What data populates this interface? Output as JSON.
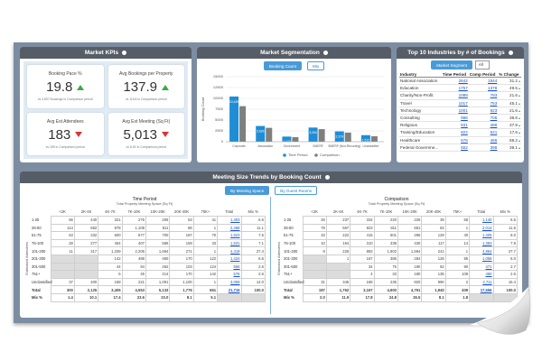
{
  "kpi_panel": {
    "title": "Market KPIs",
    "cards": [
      {
        "label": "Booking Pace %",
        "value": "19.8",
        "note": "vs 3,897 Bookings in Comparison period",
        "trend": "up"
      },
      {
        "label": "Avg Bookings per Property",
        "value": "137.9",
        "note": "vs 115.8 in Comparison period",
        "trend": "up"
      },
      {
        "label": "Avg Est Attendees",
        "value": "183",
        "note": "vs 189 in Comparison period",
        "trend": "down"
      },
      {
        "label": "Avg Est Meeting (Sq Ft)",
        "value": "5,013",
        "note": "vs 6.2K in Comparison period",
        "trend": "down"
      }
    ]
  },
  "segmentation_controls": [
    "Booking Count",
    "Mix"
  ],
  "chart_data": {
    "type": "bar",
    "title": "Market Segmentation",
    "y_label": "Booking Count",
    "categories": [
      "Corporate",
      "Association",
      "Government",
      "SMERF",
      "SMERF (Non-Recurring)",
      "Unclassified"
    ],
    "series": [
      {
        "name": "Time Period",
        "color": "#1f8dd6",
        "values": [
          10425,
          3626,
          1177,
          3264,
          2379,
          1512
        ],
        "value_labels": [
          "10,425",
          "3,626",
          "1,177",
          "3,264",
          "2,379",
          "1,512"
        ]
      },
      {
        "name": "Comparison",
        "color": "#7f7f7f",
        "values": [
          8200,
          3200,
          1050,
          2900,
          2100,
          1250
        ]
      }
    ],
    "ylim": [
      0,
      15000
    ],
    "yticks": [
      0,
      2500,
      5000,
      7500,
      10000,
      12500,
      15000
    ],
    "grid": true
  },
  "industries": {
    "title": "Top 10 Industries by # of Bookings",
    "filter_label": "Market Segment",
    "filter_value": "All",
    "columns": [
      "Industry",
      "Time Period",
      "Comp Period",
      "% Change"
    ],
    "rows": [
      [
        "National Association",
        "2642",
        "1844",
        "31.2"
      ],
      [
        "Education",
        "1757",
        "1378",
        "49.5"
      ],
      [
        "Charity/Non-Profit",
        "1088",
        "783",
        "21.6"
      ],
      [
        "Travel",
        "1017",
        "753",
        "45.1"
      ],
      [
        "Technology",
        "1001",
        "823",
        "21.6"
      ],
      [
        "Consulting",
        "996",
        "705",
        "36.6"
      ],
      [
        "Religious",
        "831",
        "488",
        "37.8"
      ],
      [
        "Training/Education",
        "822",
        "521",
        "17.6"
      ],
      [
        "Healthcare",
        "678",
        "466",
        "58.2"
      ],
      [
        "Federal Governme...",
        "552",
        "398",
        "39.1"
      ]
    ]
  },
  "meeting_size": {
    "title": "Meeting Size Trends by Booking Count",
    "tabs": [
      "By Meeting Space",
      "By Guest Rooms"
    ],
    "axis_label": "Estimated Attendees",
    "tables": [
      {
        "title": "Time Period",
        "subtitle": "Total Property Meeting Space (Sq Ft)",
        "columns": [
          "<2K",
          "2K-4K",
          "4K-7K",
          "7K-10K",
          "10K-20K",
          "20K-40K",
          "75K+",
          "Total",
          "Mix %"
        ],
        "rows": [
          {
            "label": "1-25",
            "cells": [
              "66",
              "440",
              "321",
              "276",
              "206",
              "53",
              "41",
              "1,403",
              "6.6"
            ]
          },
          {
            "label": "26-50",
            "cells": [
              "114",
              "682",
              "878",
              "1,108",
              "811",
              "86",
              "1",
              "2,468",
              "11.1"
            ]
          },
          {
            "label": "51-75",
            "cells": [
              "63",
              "332",
              "600",
              "677",
              "700",
              "187",
              "70",
              "1,623",
              "7.5"
            ]
          },
          {
            "label": "76-100",
            "cells": [
              "28",
              "277",
              "454",
              "407",
              "566",
              "159",
              "33",
              "1,531",
              "7.1"
            ]
          },
          {
            "label": "101-200",
            "cells": [
              "11",
              "317",
              "1,339",
              "2,206",
              "1,694",
              "271",
              "1",
              "4,419",
              "27.4"
            ]
          },
          {
            "label": "201-300",
            "cells": [
              null,
              null,
              "142",
              "488",
              "460",
              "170",
              "122",
              "1,424",
              "6.6"
            ]
          },
          {
            "label": "301-500",
            "cells": [
              null,
              null,
              "44",
              "94",
              "262",
              "103",
              "124",
              "556",
              "2.6"
            ]
          },
          {
            "label": "751+",
            "cells": [
              null,
              null,
              "5",
              "45",
              "214",
              "170",
              "142",
              "576",
              "2.6"
            ]
          },
          {
            "label": "Unclassified",
            "cells": [
              "37",
              "400",
              "168",
              "221",
              "1,091",
              "1,100",
              "1",
              "3,059",
              "14.0"
            ]
          },
          {
            "label": "Total",
            "cells": [
              "300",
              "2,125",
              "3,405",
              "4,553",
              "5,133",
              "1,776",
              "651",
              "21,716",
              "100.0"
            ]
          },
          {
            "label": "Mix %",
            "cells": [
              "1.4",
              "10.1",
              "17.4",
              "23.6",
              "23.0",
              "8.1",
              "5.1",
              null,
              null
            ]
          }
        ]
      },
      {
        "title": "Comparison",
        "subtitle": "Total Property Meeting Space (Sq Ft)",
        "columns": [
          "<2K",
          "2K-4K",
          "4K-7K",
          "7K-10K",
          "10K-20K",
          "20K-40K",
          "75K+",
          "Total",
          "Mix %"
        ],
        "rows": [
          {
            "label": "1-25",
            "cells": [
              "26",
              "237",
              "334",
              "220",
              "226",
              "39",
              "58",
              "1,140",
              "6.5"
            ]
          },
          {
            "label": "26-50",
            "cells": [
              "79",
              "567",
              "823",
              "811",
              "651",
              "82",
              "1",
              "2,014",
              "11.5"
            ]
          },
          {
            "label": "51-75",
            "cells": [
              "33",
              "222",
              "415",
              "601",
              "286",
              "128",
              "40",
              "1,405",
              "8.0"
            ]
          },
          {
            "label": "76-100",
            "cells": [
              "10",
              "164",
              "310",
              "338",
              "430",
              "117",
              "14",
              "1,383",
              "7.9"
            ]
          },
          {
            "label": "101-200",
            "cells": [
              "8",
              "226",
              "892",
              "1,902",
              "1,594",
              "241",
              "1",
              "4,864",
              "27.7"
            ]
          },
          {
            "label": "201-300",
            "cells": [
              null,
              "1",
              "167",
              "385",
              "284",
              "126",
              "95",
              "1,058",
              "6.0"
            ]
          },
          {
            "label": "301-500",
            "cells": [
              null,
              null,
              "34",
              "75",
              "190",
              "82",
              "90",
              "471",
              "2.7"
            ]
          },
          {
            "label": "751+",
            "cells": [
              null,
              null,
              "4",
              "33",
              "180",
              "135",
              "108",
              "460",
              "2.6"
            ]
          },
          {
            "label": "Unclassified",
            "cells": [
              "31",
              "345",
              "188",
              "235",
              "920",
              "990",
              "2",
              "2,711",
              "15.4"
            ]
          },
          {
            "label": "Total",
            "cells": [
              "187",
              "1,762",
              "3,167",
              "4,600",
              "4,761",
              "1,940",
              "409",
              "17,556",
              "100.0"
            ]
          },
          {
            "label": "Mix %",
            "cells": [
              "2.0",
              "11.9",
              "17.8",
              "24.8",
              "26.5",
              "8.1",
              "1.8",
              null,
              null
            ]
          }
        ]
      }
    ]
  }
}
